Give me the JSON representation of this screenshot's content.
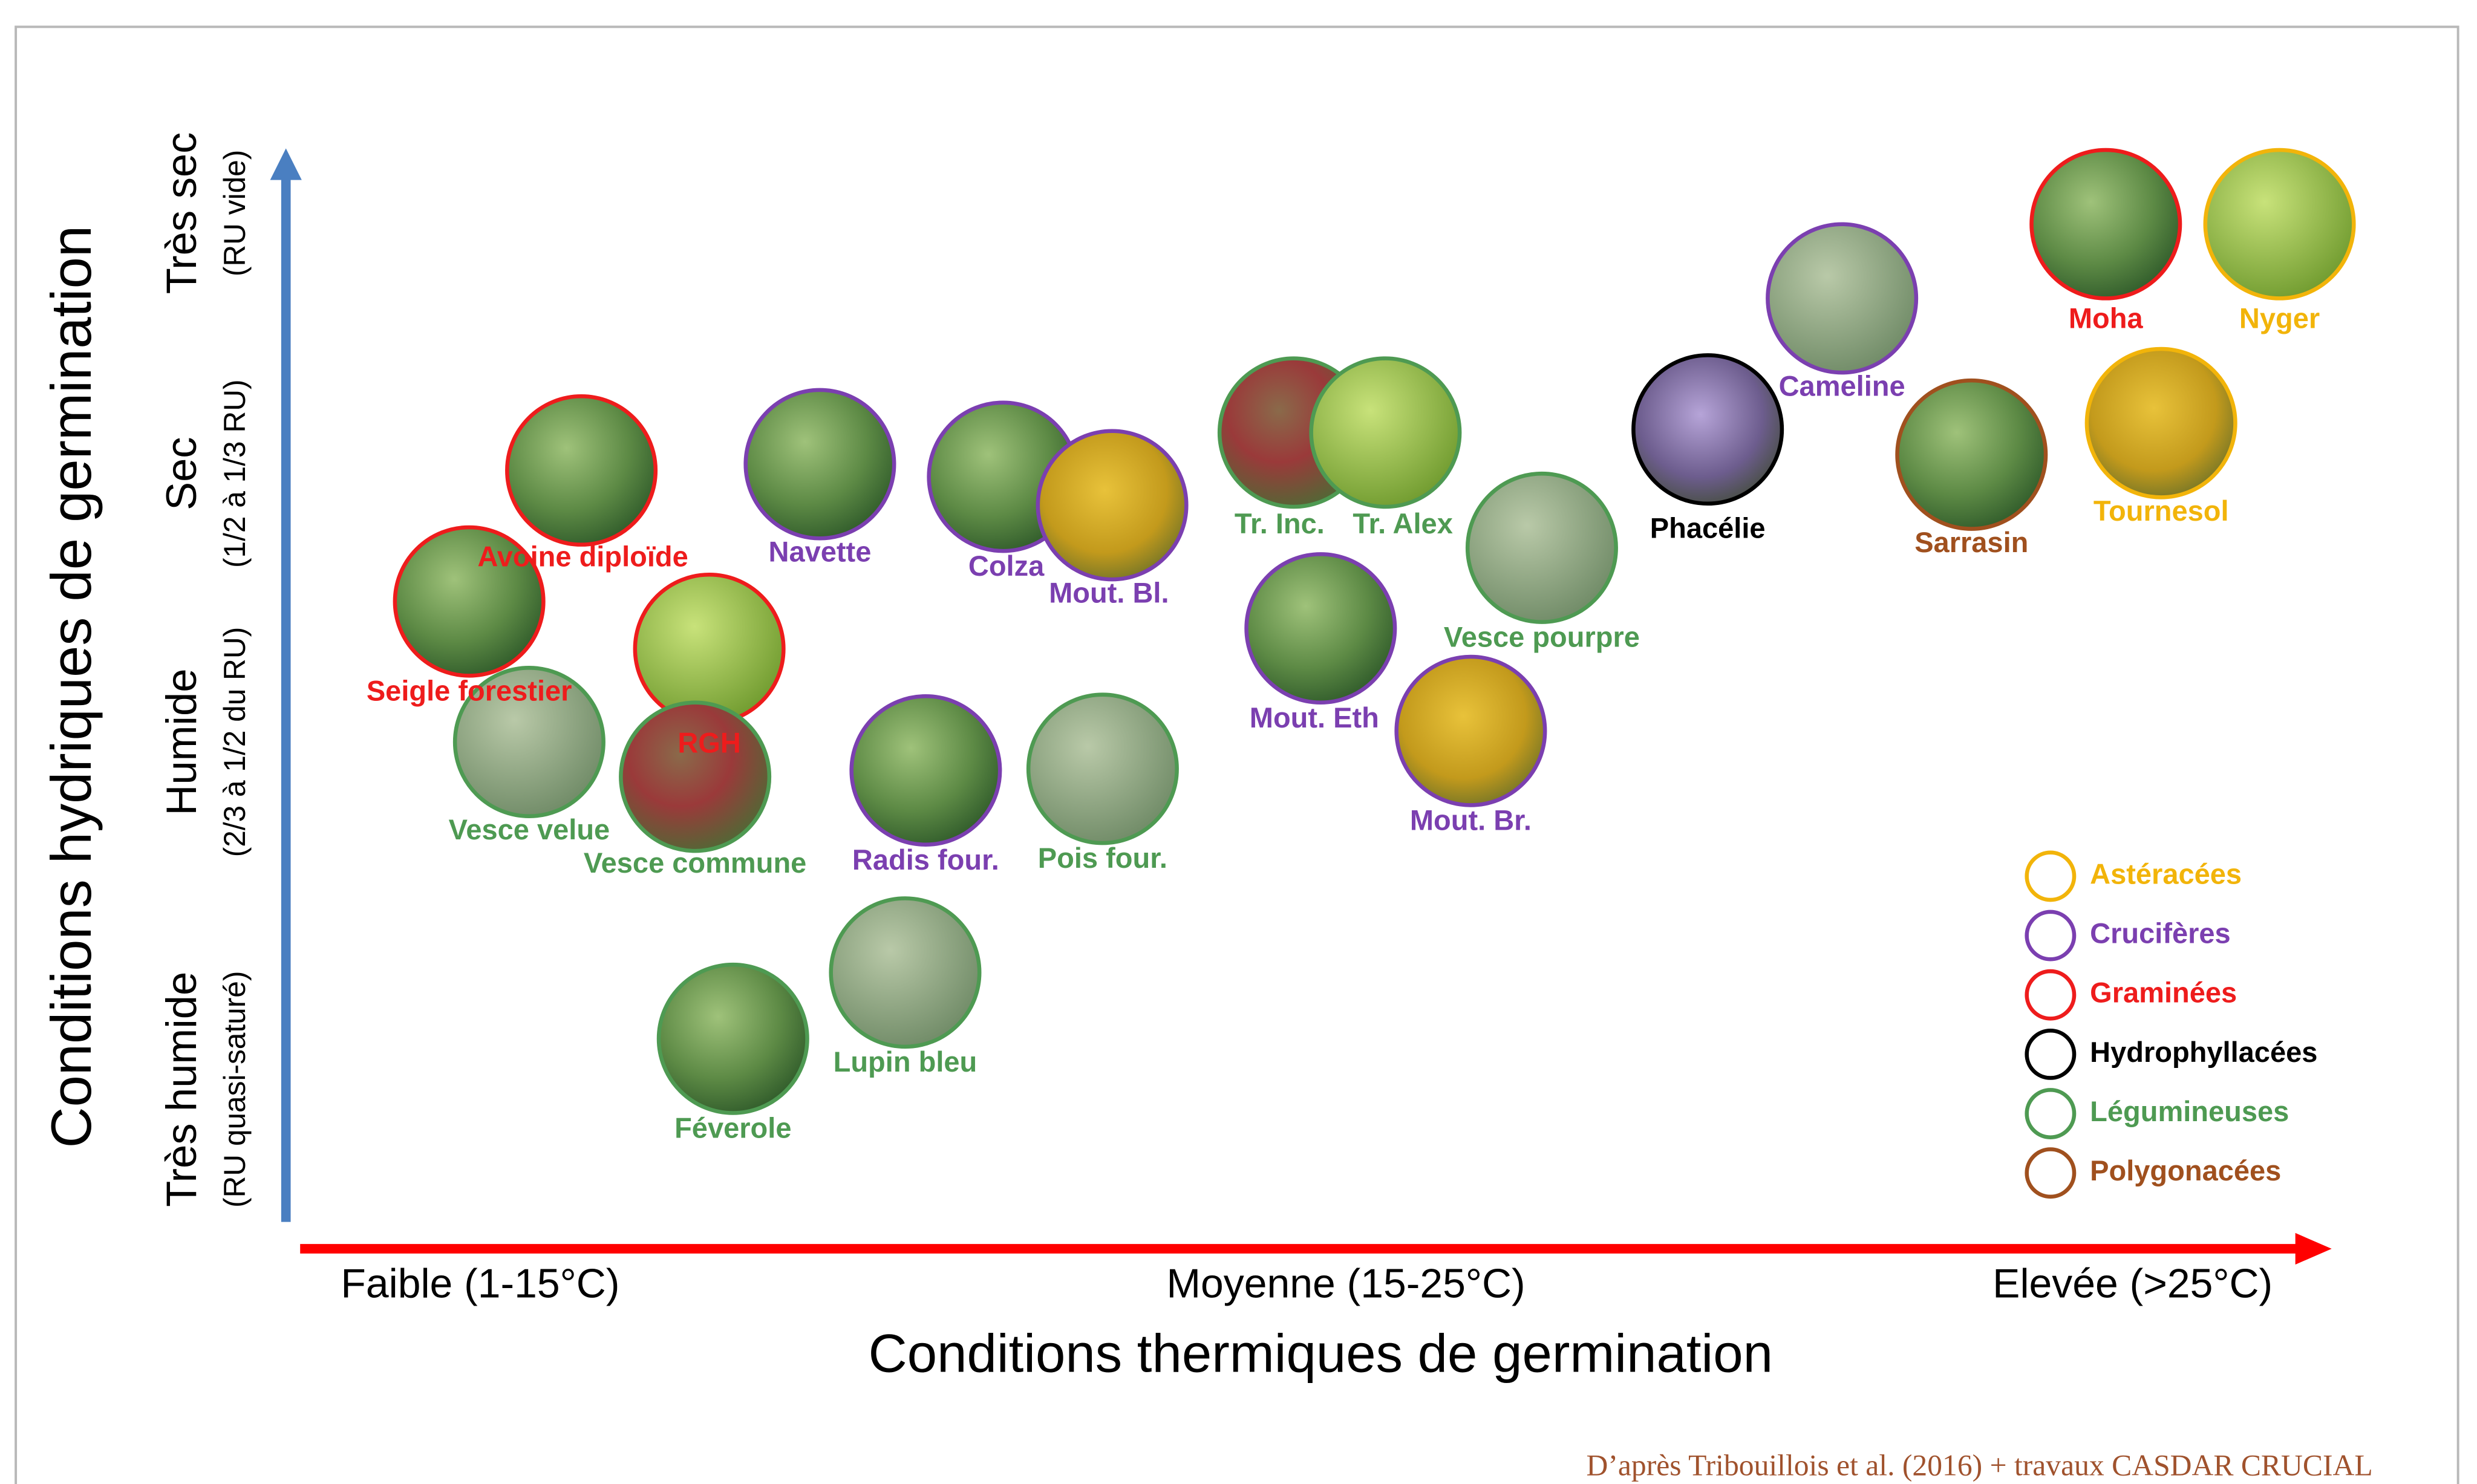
{
  "y_axis": {
    "title": "Conditions hydriques de germination",
    "levels": [
      {
        "label": "Très sec",
        "sub": "(RU vide)"
      },
      {
        "label": "Sec",
        "sub": "(1/2 à 1/3 RU)"
      },
      {
        "label": "Humide",
        "sub": "(2/3 à 1/2 du RU)"
      },
      {
        "label": "Très humide",
        "sub": "(RU quasi-saturé)"
      }
    ]
  },
  "x_axis": {
    "title": "Conditions thermiques de germination",
    "levels": [
      "Faible (1-15°C)",
      "Moyenne (15-25°C)",
      "Elevée (>25°C)"
    ]
  },
  "plants": [
    {
      "name": "Avoine diploïde",
      "color": "#ee1c1c"
    },
    {
      "name": "Seigle forestier",
      "color": "#ee1c1c"
    },
    {
      "name": "RGH",
      "color": "#ee1c1c"
    },
    {
      "name": "Vesce velue",
      "color": "#4e9a52"
    },
    {
      "name": "Vesce commune",
      "color": "#4e9a52"
    },
    {
      "name": "Navette",
      "color": "#7b3fb0"
    },
    {
      "name": "Colza",
      "color": "#7b3fb0"
    },
    {
      "name": "Mout. Bl.",
      "color": "#7b3fb0"
    },
    {
      "name": "Radis four.",
      "color": "#7b3fb0"
    },
    {
      "name": "Pois four.",
      "color": "#4e9a52"
    },
    {
      "name": "Lupin bleu",
      "color": "#4e9a52"
    },
    {
      "name": "Féverole",
      "color": "#4e9a52"
    },
    {
      "name": "Tr. Inc.",
      "color": "#4e9a52"
    },
    {
      "name": "Tr. Alex",
      "color": "#4e9a52"
    },
    {
      "name": "Mout. Eth",
      "color": "#7b3fb0"
    },
    {
      "name": "Vesce pourpre",
      "color": "#4e9a52"
    },
    {
      "name": "Mout. Br.",
      "color": "#7b3fb0"
    },
    {
      "name": "Phacélie",
      "color": "#000000"
    },
    {
      "name": "Cameline",
      "color": "#7b3fb0"
    },
    {
      "name": "Sarrasin",
      "color": "#a0501e"
    },
    {
      "name": "Moha",
      "color": "#ee1c1c"
    },
    {
      "name": "Nyger",
      "color": "#f2b40a"
    },
    {
      "name": "Tournesol",
      "color": "#f2b40a"
    }
  ],
  "legend": [
    {
      "name": "Astéracées",
      "color": "#f2b40a"
    },
    {
      "name": "Crucifères",
      "color": "#7b3fb0"
    },
    {
      "name": "Graminées",
      "color": "#ee1c1c"
    },
    {
      "name": "Hydrophyllacées",
      "color": "#000000"
    },
    {
      "name": "Légumineuses",
      "color": "#4e9a52"
    },
    {
      "name": "Polygonacées",
      "color": "#a0501e"
    }
  ],
  "source": "D’après Tribouillois et al. (2016) + travaux CASDAR CRUCIAL"
}
